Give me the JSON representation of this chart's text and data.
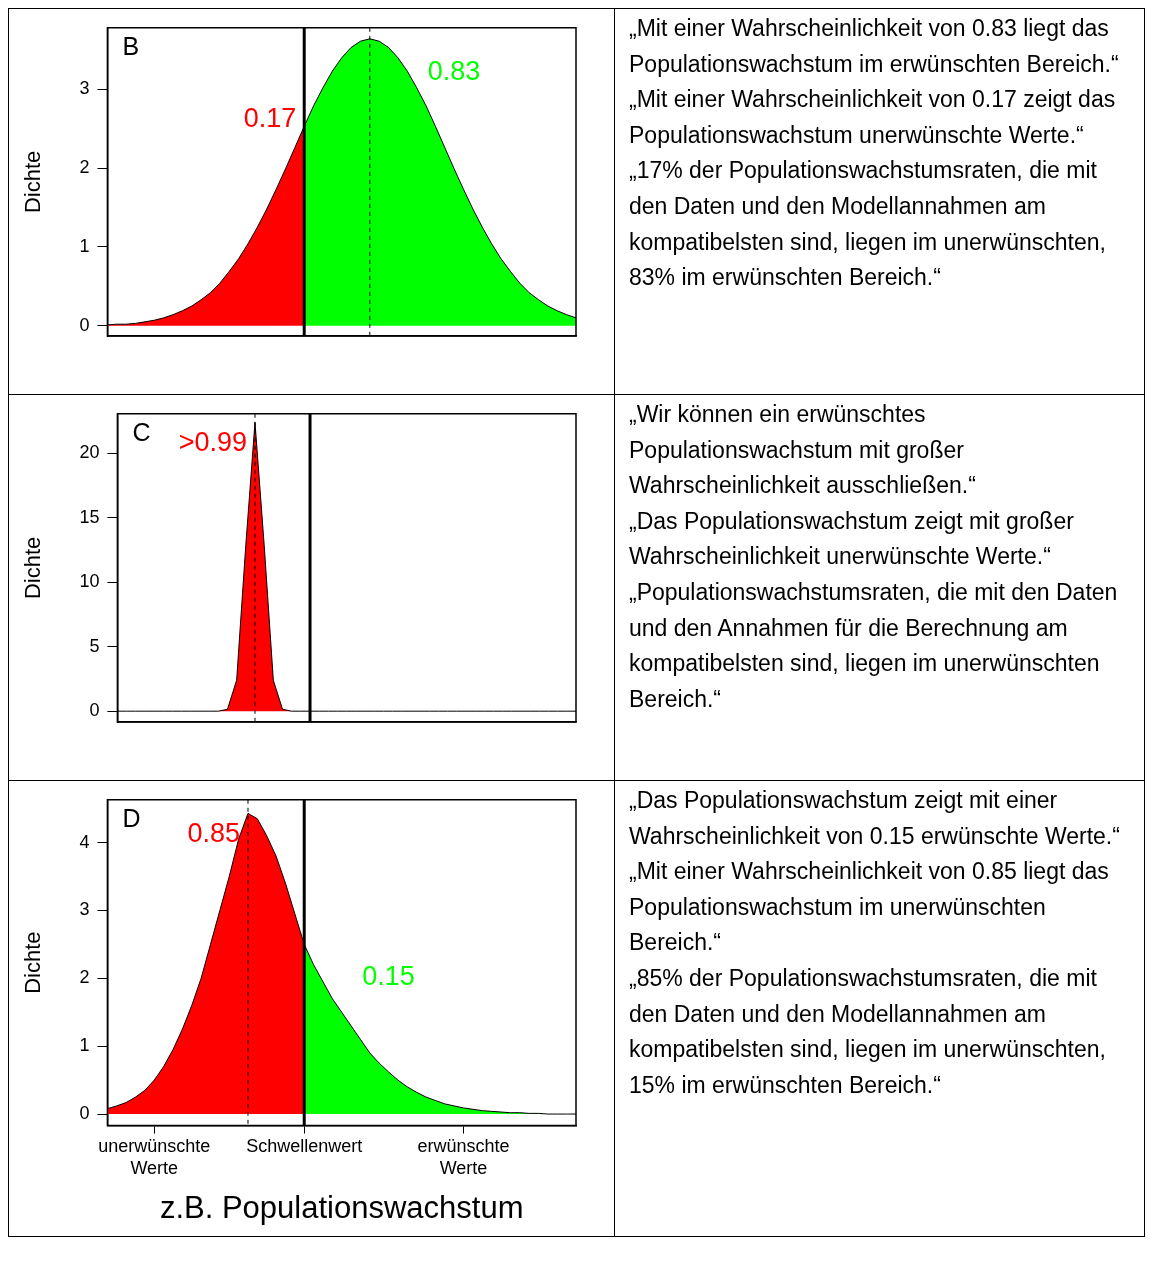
{
  "chart_data": [
    {
      "type": "area",
      "title": "B",
      "ylabel": "Dichte",
      "ylim": [
        -0.13,
        3.78
      ],
      "yticks": [
        0,
        1,
        2,
        3
      ],
      "tick_labels": "y",
      "categories": [
        null,
        null,
        null,
        null,
        null,
        null,
        null,
        null,
        null,
        null,
        null,
        null,
        null,
        null,
        null,
        null,
        null,
        null,
        null,
        null,
        null,
        null,
        null,
        null,
        null,
        null,
        null,
        null,
        null,
        null,
        null,
        null,
        null,
        null,
        null,
        null,
        null,
        null,
        null,
        null,
        null,
        null,
        null,
        null,
        null,
        null,
        null,
        null,
        null,
        null,
        null
      ],
      "series": [
        {
          "color": "#ff0000",
          "values": [
            0.01,
            0.02,
            0.02,
            0.03,
            0.05,
            0.07,
            0.1,
            0.14,
            0.19,
            0.25,
            0.33,
            0.42,
            0.54,
            0.69,
            0.85,
            1.04,
            1.25,
            1.48,
            1.73,
            1.99,
            2.26,
            2.53,
            null,
            null,
            null,
            null,
            null,
            null,
            null,
            null,
            null,
            null,
            null,
            null,
            null,
            null,
            null,
            null,
            null,
            null,
            null,
            null,
            null,
            null,
            null,
            null,
            null,
            null,
            null,
            null,
            null
          ]
        },
        {
          "color": "#00ff00",
          "values": [
            null,
            null,
            null,
            null,
            null,
            null,
            null,
            null,
            null,
            null,
            null,
            null,
            null,
            null,
            null,
            null,
            null,
            null,
            null,
            null,
            null,
            2.53,
            2.79,
            3.02,
            3.23,
            3.4,
            3.53,
            3.61,
            3.64,
            3.61,
            3.53,
            3.4,
            3.23,
            3.02,
            2.79,
            2.53,
            2.26,
            1.99,
            1.73,
            1.48,
            1.25,
            1.04,
            0.85,
            0.69,
            0.54,
            0.42,
            0.33,
            0.25,
            0.19,
            0.14,
            0.1
          ]
        }
      ],
      "annotations": [
        "0.17",
        "0.83"
      ]
    },
    {
      "type": "other",
      "annotations": [
        "„Mit einer Wahrscheinlichkeit von 0.83 liegt das Populationswachstum im erwünschten Bereich.“",
        "„Mit einer Wahrscheinlichkeit von 0.17 zeigt das Populationswachstum unerwünschte Werte.“",
        "„17% der Populationswachstumsraten, die mit den Daten und den Modellannahmen am kompatibelsten sind, liegen im unerwünschten, 83% im erwünschten Bereich.“"
      ]
    },
    {
      "type": "area",
      "title": "C",
      "ylabel": "Dichte",
      "ylim": [
        -0.84,
        23.07
      ],
      "yticks": [
        0,
        5,
        10,
        15,
        20
      ],
      "tick_labels": "y",
      "categories": [
        null,
        null,
        null,
        null,
        null,
        null,
        null,
        null,
        null,
        null,
        null,
        null,
        null,
        null,
        null,
        null,
        null,
        null,
        null,
        null,
        null,
        null,
        null,
        null,
        null,
        null,
        null,
        null,
        null,
        null,
        null,
        null,
        null,
        null,
        null,
        null,
        null,
        null,
        null,
        null,
        null,
        null,
        null,
        null,
        null,
        null,
        null,
        null,
        null,
        null,
        null
      ],
      "series": [
        {
          "color": "#ff0000",
          "values": [
            0,
            0,
            0,
            0,
            0,
            0,
            0,
            0,
            0,
            0,
            0,
            0,
            0.15,
            2.4,
            12.9,
            22.4,
            12.9,
            2.4,
            0.15,
            0,
            0,
            0,
            null,
            null,
            null,
            null,
            null,
            null,
            null,
            null,
            null,
            null,
            null,
            null,
            null,
            null,
            null,
            null,
            null,
            null,
            null,
            null,
            null,
            null,
            null,
            null,
            null,
            null,
            null,
            null,
            null
          ]
        },
        {
          "type": "line",
          "color": "#000000",
          "values": [
            null,
            null,
            null,
            null,
            null,
            null,
            null,
            null,
            null,
            null,
            null,
            null,
            null,
            null,
            null,
            null,
            null,
            null,
            null,
            null,
            null,
            0,
            0,
            0,
            0,
            0,
            0,
            0,
            0,
            0,
            0,
            0,
            0,
            0,
            0,
            0,
            0,
            0,
            0,
            0,
            0,
            0,
            0,
            0,
            0,
            0,
            0,
            0,
            0,
            0,
            0
          ]
        }
      ],
      "annotations": [
        ">0.99"
      ]
    },
    {
      "type": "other",
      "annotations": [
        "„Wir können ein erwünschtes Populationswachstum mit großer Wahrscheinlichkeit ausschließen.“",
        "„Das Populationswachstum zeigt mit großer Wahrscheinlichkeit unerwünschte Werte.“",
        "„Populationswachstumsraten, die mit den Daten und den Annahmen für die Berechnung am kompatibelsten sind, liegen im unerwünschten Bereich.“"
      ]
    },
    {
      "type": "area",
      "title": "D",
      "ylabel": "Dichte",
      "xlabel": "z.B. Populationswachstum",
      "ylim": [
        -0.17,
        4.63
      ],
      "yticks": [
        0,
        1,
        2,
        3,
        4
      ],
      "categories": [
        null,
        null,
        null,
        null,
        null,
        "unerwünschte Werte",
        null,
        null,
        null,
        null,
        null,
        null,
        null,
        null,
        null,
        null,
        null,
        null,
        null,
        null,
        null,
        "Schwellenwert",
        null,
        null,
        null,
        null,
        null,
        null,
        null,
        null,
        null,
        null,
        null,
        null,
        null,
        null,
        null,
        null,
        "erwünschte Werte",
        null,
        null,
        null,
        null,
        null,
        null,
        null,
        null,
        null,
        null,
        null,
        null
      ],
      "series": [
        {
          "color": "#ff0000",
          "values": [
            0.08,
            0.12,
            0.17,
            0.25,
            0.35,
            0.5,
            0.7,
            0.95,
            1.25,
            1.6,
            2.0,
            2.5,
            3.0,
            3.5,
            4.05,
            4.43,
            4.35,
            4.1,
            3.8,
            3.4,
            2.95,
            2.5,
            null,
            null,
            null,
            null,
            null,
            null,
            null,
            null,
            null,
            null,
            null,
            null,
            null,
            null,
            null,
            null,
            null,
            null,
            null,
            null,
            null,
            null,
            null,
            null,
            null,
            null,
            null,
            null,
            null
          ]
        },
        {
          "color": "#00ff00",
          "values": [
            null,
            null,
            null,
            null,
            null,
            null,
            null,
            null,
            null,
            null,
            null,
            null,
            null,
            null,
            null,
            null,
            null,
            null,
            null,
            null,
            null,
            2.5,
            2.2,
            1.95,
            1.7,
            1.5,
            1.3,
            1.1,
            0.9,
            0.75,
            0.62,
            0.5,
            0.4,
            0.32,
            0.25,
            0.2,
            0.15,
            0.12,
            0.09,
            0.07,
            0.05,
            0.04,
            0.03,
            0.02,
            0.02,
            0.01,
            0.01,
            0,
            0,
            0,
            0
          ]
        }
      ],
      "ref_lines": [
        {
          "axis": "x",
          "value": "Schwellenwert",
          "color": "#000000",
          "line_style": "solid"
        }
      ],
      "annotations": [
        "0.85",
        "0.15"
      ]
    },
    {
      "type": "other",
      "annotations": [
        "„Das Populationswachstum zeigt mit einer Wahrscheinlichkeit von 0.15 erwünschte Werte.“",
        "„Mit einer Wahrscheinlichkeit von 0.85 liegt das Populationswachstum im unerwünschten Bereich.“",
        "„85% der Populationswachstumsraten, die mit den Daten und den Modellannahmen am kompatibelsten sind, liegen im unerwünschten, 15% im erwünschten Bereich.“"
      ]
    }
  ]
}
